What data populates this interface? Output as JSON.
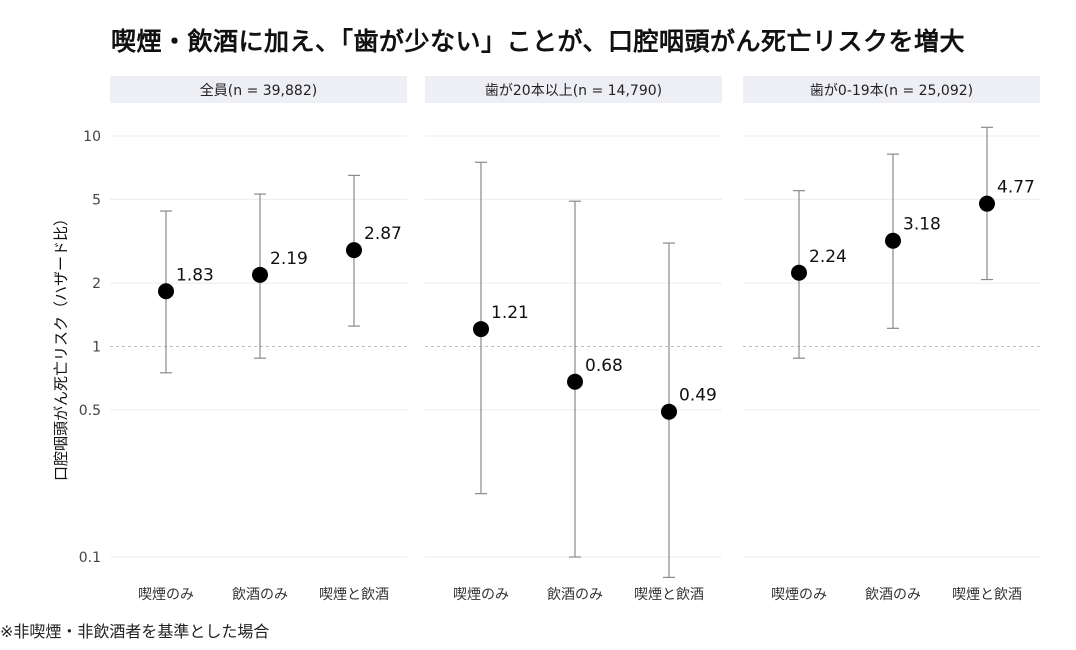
{
  "title": "喫煙・飲酒に加え、「歯が少ない」ことが、口腔咽頭がん死亡リスクを増大",
  "footnote": "※非喫煙・非飲酒者を基準とした場合",
  "chart_data": {
    "type": "scatter",
    "title": "喫煙・飲酒に加え、「歯が少ない」ことが、口腔咽頭がん死亡リスクを増大",
    "ylabel": "口腔咽頭がん死亡リスク（ハザード比）",
    "y_scale": "log",
    "ylim": [
      0.08,
      11
    ],
    "y_ticks": [
      0.1,
      0.5,
      1,
      2,
      5,
      10
    ],
    "y_tick_labels": [
      "0.1",
      "0.5",
      "1",
      "2",
      "5",
      "10"
    ],
    "reference_line": 1,
    "categories": [
      "喫煙のみ",
      "飲酒のみ",
      "喫煙と飲酒"
    ],
    "grid": true,
    "panels": [
      {
        "label": "全員(n = 39,882)",
        "estimates": [
          1.83,
          2.19,
          2.87
        ],
        "estimate_labels": [
          "1.83",
          "2.19",
          "2.87"
        ],
        "ci_lower": [
          0.75,
          0.88,
          1.25
        ],
        "ci_upper": [
          4.4,
          5.3,
          6.5
        ]
      },
      {
        "label": "歯が20本以上(n = 14,790)",
        "estimates": [
          1.21,
          0.68,
          0.49
        ],
        "estimate_labels": [
          "1.21",
          "0.68",
          "0.49"
        ],
        "ci_lower": [
          0.2,
          0.1,
          0.08
        ],
        "ci_upper": [
          7.5,
          4.9,
          3.1
        ]
      },
      {
        "label": "歯が0-19本(n = 25,092)",
        "estimates": [
          2.24,
          3.18,
          4.77
        ],
        "estimate_labels": [
          "2.24",
          "3.18",
          "4.77"
        ],
        "ci_lower": [
          0.88,
          1.22,
          2.08
        ],
        "ci_upper": [
          5.5,
          8.2,
          11.0
        ]
      }
    ]
  }
}
